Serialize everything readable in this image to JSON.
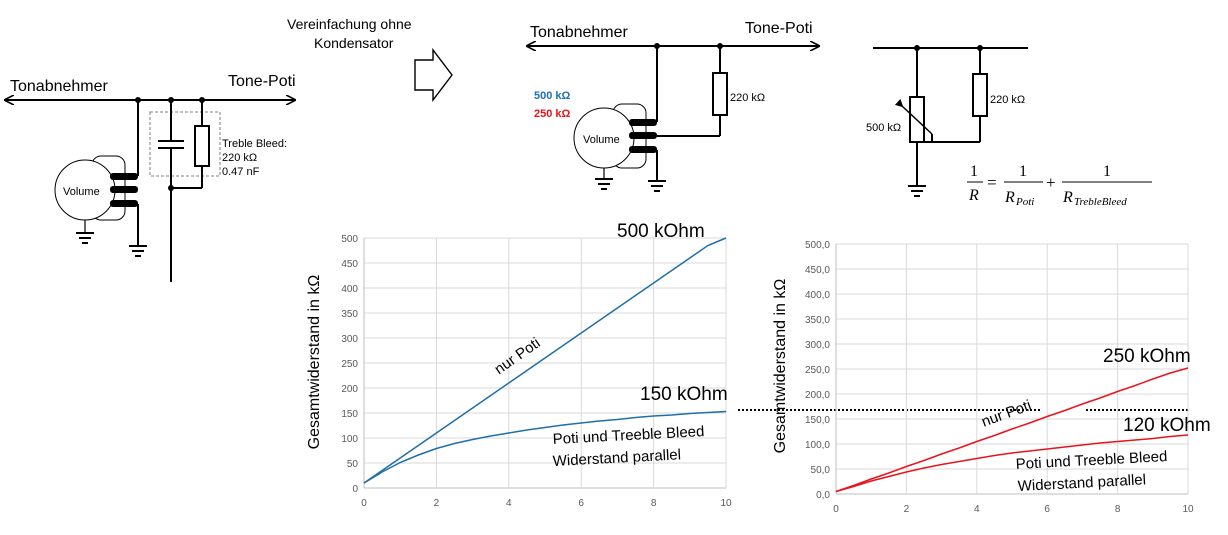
{
  "colors": {
    "blue": "#1f6fb2",
    "red": "#e8141c",
    "dark_blue_line": "#1f6fa8"
  },
  "icons": [
    "arrow-right-outline-icon",
    "ground-icon",
    "potentiometer-icon",
    "resistor-icon",
    "capacitor-icon",
    "variable-resistor-icon"
  ],
  "circuit_original": {
    "left_label": "Tonabnehmer",
    "right_label": "Tone-Poti",
    "volume_label": "Volume",
    "bleed_label_1": "Treble Bleed:",
    "bleed_label_2": "220 kΩ",
    "bleed_label_3": "0.47 nF"
  },
  "simplification": {
    "line1": "Vereinfachung ohne",
    "line2": "Kondensator"
  },
  "circuit_simplified": {
    "left_label": "Tonabnehmer",
    "right_label": "Tone-Poti",
    "volume_label": "Volume",
    "value_500": "500 kΩ",
    "value_250": "250 kΩ",
    "resistor_label": "220 kΩ"
  },
  "circuit_equivalent": {
    "poti_label": "500 kΩ",
    "resistor_label": "220 kΩ",
    "formula": {
      "one": "1",
      "lhs_den": "R",
      "equals": "=",
      "plus": "+",
      "den1_main": "R",
      "den1_sub": "Poti",
      "den2_main": "R",
      "den2_sub": "TrebleBleed"
    }
  },
  "chart_data": [
    {
      "type": "line",
      "title": "",
      "ylabel": "Gesamtwiderstand in kΩ",
      "xlabel": "",
      "xlim": [
        0,
        10
      ],
      "ylim": [
        0,
        500
      ],
      "x_ticks": [
        "0",
        "2",
        "4",
        "6",
        "8",
        "10"
      ],
      "y_ticks": [
        "0",
        "50",
        "100",
        "150",
        "200",
        "250",
        "300",
        "350",
        "400",
        "450",
        "500"
      ],
      "grid": true,
      "x": [
        0,
        0.5,
        1,
        1.5,
        2,
        2.5,
        3,
        3.5,
        4,
        4.5,
        5,
        5.5,
        6,
        6.5,
        7,
        7.5,
        8,
        8.5,
        9,
        9.5,
        10
      ],
      "series": [
        {
          "name": "nur Poti",
          "values": [
            10,
            35,
            60,
            85,
            110,
            135,
            160,
            185,
            210,
            235,
            260,
            285,
            310,
            335,
            360,
            385,
            410,
            435,
            460,
            485,
            500
          ]
        },
        {
          "name": "Poti und Treeble Bleed Widerstand parallel",
          "values": [
            10,
            32,
            51,
            66,
            79,
            89,
            97,
            104,
            110,
            116,
            121,
            126,
            130,
            134,
            137,
            141,
            144,
            146,
            149,
            151,
            153
          ]
        }
      ],
      "annotations": {
        "top": "500 kOhm",
        "mid": "150 kOhm",
        "series1_label": "nur Poti",
        "series2_line1": "Poti und Treeble Bleed",
        "series2_line2": "Widerstand parallel"
      }
    },
    {
      "type": "line",
      "title": "",
      "ylabel": "Gesamtwiderstand in kΩ",
      "xlabel": "",
      "xlim": [
        0,
        10
      ],
      "ylim": [
        0,
        500
      ],
      "x_ticks": [
        "0",
        "2",
        "4",
        "6",
        "8",
        "10"
      ],
      "y_ticks": [
        "0,0",
        "50,0",
        "100,0",
        "150,0",
        "200,0",
        "250,0",
        "300,0",
        "350,0",
        "400,0",
        "450,0",
        "500,0"
      ],
      "grid": true,
      "x": [
        0,
        0.5,
        1,
        1.5,
        2,
        2.5,
        3,
        3.5,
        4,
        4.5,
        5,
        5.5,
        6,
        6.5,
        7,
        7.5,
        8,
        8.5,
        9,
        9.5,
        10
      ],
      "series": [
        {
          "name": "nur Poti",
          "values": [
            5,
            17,
            30,
            42,
            55,
            67,
            80,
            92,
            105,
            117,
            130,
            142,
            155,
            167,
            180,
            192,
            205,
            217,
            230,
            242,
            252
          ]
        },
        {
          "name": "Poti und Treeble Bleed Widerstand parallel",
          "values": [
            5,
            15,
            26,
            35,
            44,
            52,
            59,
            65,
            71,
            77,
            82,
            86,
            90,
            94,
            98,
            102,
            105,
            108,
            111,
            115,
            118
          ]
        }
      ],
      "annotations": {
        "top": "250 kOhm",
        "mid": "120 kOhm",
        "series1_label": "nur Poti",
        "series2_line1": "Poti und Treeble Bleed",
        "series2_line2": "Widerstand parallel"
      }
    }
  ]
}
